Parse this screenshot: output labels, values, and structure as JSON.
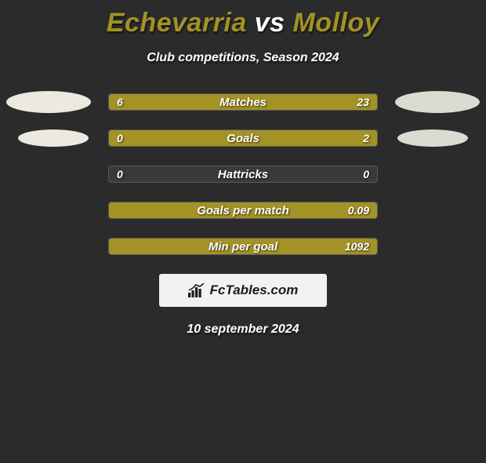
{
  "colors": {
    "bg": "#2b2b2c",
    "accent": "#a39225",
    "player_left": "#ebe9e0",
    "player_right": "#dcdbd2",
    "text_white": "#ffffff",
    "badge_bg": "#f2f2f2",
    "badge_text": "#1b1b1b"
  },
  "header": {
    "player_left": "Echevarria",
    "vs": "vs",
    "player_right": "Molloy",
    "subtitle": "Club competitions, Season 2024"
  },
  "rows": [
    {
      "label": "Matches",
      "left": "6",
      "right": "23",
      "left_pct": 21,
      "right_pct": 79,
      "left_color": "#a39225",
      "right_color": "#a39225",
      "oval": true,
      "oval_small": false
    },
    {
      "label": "Goals",
      "left": "0",
      "right": "2",
      "left_pct": 0,
      "right_pct": 100,
      "left_color": "#a39225",
      "right_color": "#a39225",
      "oval": true,
      "oval_small": true
    },
    {
      "label": "Hattricks",
      "left": "0",
      "right": "0",
      "left_pct": 0,
      "right_pct": 0,
      "left_color": "#a39225",
      "right_color": "#a39225",
      "oval": false
    },
    {
      "label": "Goals per match",
      "left": "",
      "right": "0.09",
      "left_pct": 0,
      "right_pct": 100,
      "left_color": "#a39225",
      "right_color": "#a39225",
      "oval": false
    },
    {
      "label": "Min per goal",
      "left": "",
      "right": "1092",
      "left_pct": 0,
      "right_pct": 100,
      "left_color": "#a39225",
      "right_color": "#a39225",
      "oval": false
    }
  ],
  "badge": {
    "text": "FcTables.com"
  },
  "date": "10 september 2024"
}
